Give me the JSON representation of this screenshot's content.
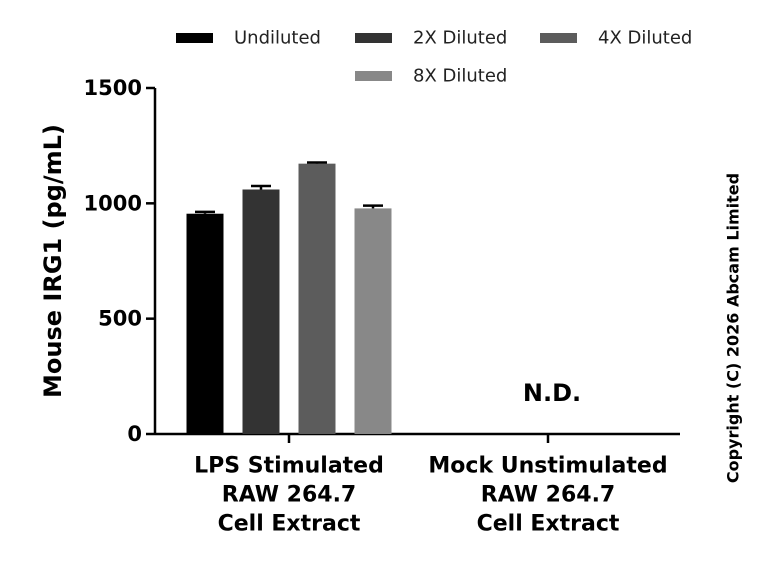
{
  "chart_data": {
    "type": "bar",
    "ylabel": "Mouse IRG1 (pg/mL)",
    "ylim": [
      0,
      1500
    ],
    "yticks": [
      0,
      500,
      1000,
      1500
    ],
    "categories": [
      [
        "LPS Stimulated",
        "RAW 264.7",
        "Cell Extract"
      ],
      [
        "Mock Unstimulated",
        "RAW 264.7",
        "Cell Extract"
      ]
    ],
    "series": [
      {
        "name": "Undiluted",
        "color": "#000000",
        "values": [
          955,
          null
        ],
        "errors": [
          8,
          null
        ]
      },
      {
        "name": "2X Diluted",
        "color": "#333333",
        "values": [
          1060,
          null
        ],
        "errors": [
          15,
          null
        ]
      },
      {
        "name": "4X Diluted",
        "color": "#5c5c5c",
        "values": [
          1172,
          null
        ],
        "errors": [
          5,
          null
        ]
      },
      {
        "name": "8X Diluted",
        "color": "#888888",
        "values": [
          978,
          null
        ],
        "errors": [
          12,
          null
        ]
      }
    ],
    "annotations": [
      {
        "category_index": 1,
        "text": "N.D."
      }
    ],
    "legend_position": "top",
    "grid": false
  },
  "copyright": "Copyright (C) 2026 Abcam Limited"
}
